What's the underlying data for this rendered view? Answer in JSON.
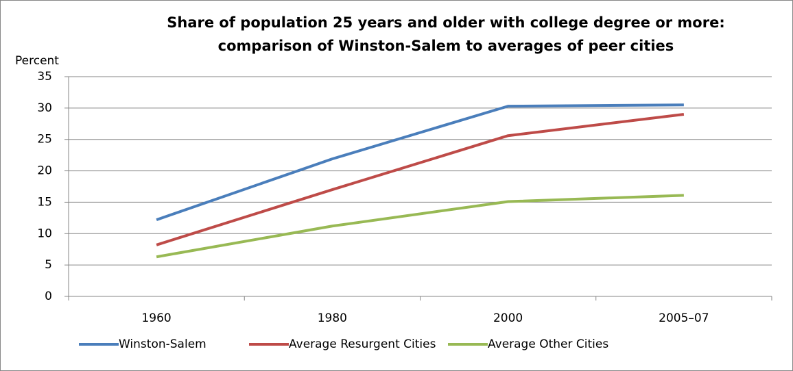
{
  "chart_data": {
    "type": "line",
    "title": [
      "Share of population 25 years and older with college degree or more:",
      "comparison of Winston-Salem to averages of peer cities"
    ],
    "y_label": "Percent",
    "categories": [
      "1960",
      "1980",
      "2000",
      "2005–07"
    ],
    "series": [
      {
        "name": "Winston-Salem",
        "color": "#4a7ebb",
        "values": [
          12.2,
          21.9,
          30.3,
          30.5
        ]
      },
      {
        "name": "Average Resurgent Cities",
        "color": "#be4b48",
        "values": [
          8.2,
          17.0,
          25.6,
          29.0
        ]
      },
      {
        "name": "Average Other Cities",
        "color": "#98b954",
        "values": [
          6.3,
          11.2,
          15.1,
          16.1
        ]
      }
    ],
    "ylim": [
      0,
      35
    ],
    "yticks": [
      0,
      5,
      10,
      15,
      20,
      25,
      30,
      35
    ],
    "grid": true,
    "legend": "bottom"
  }
}
